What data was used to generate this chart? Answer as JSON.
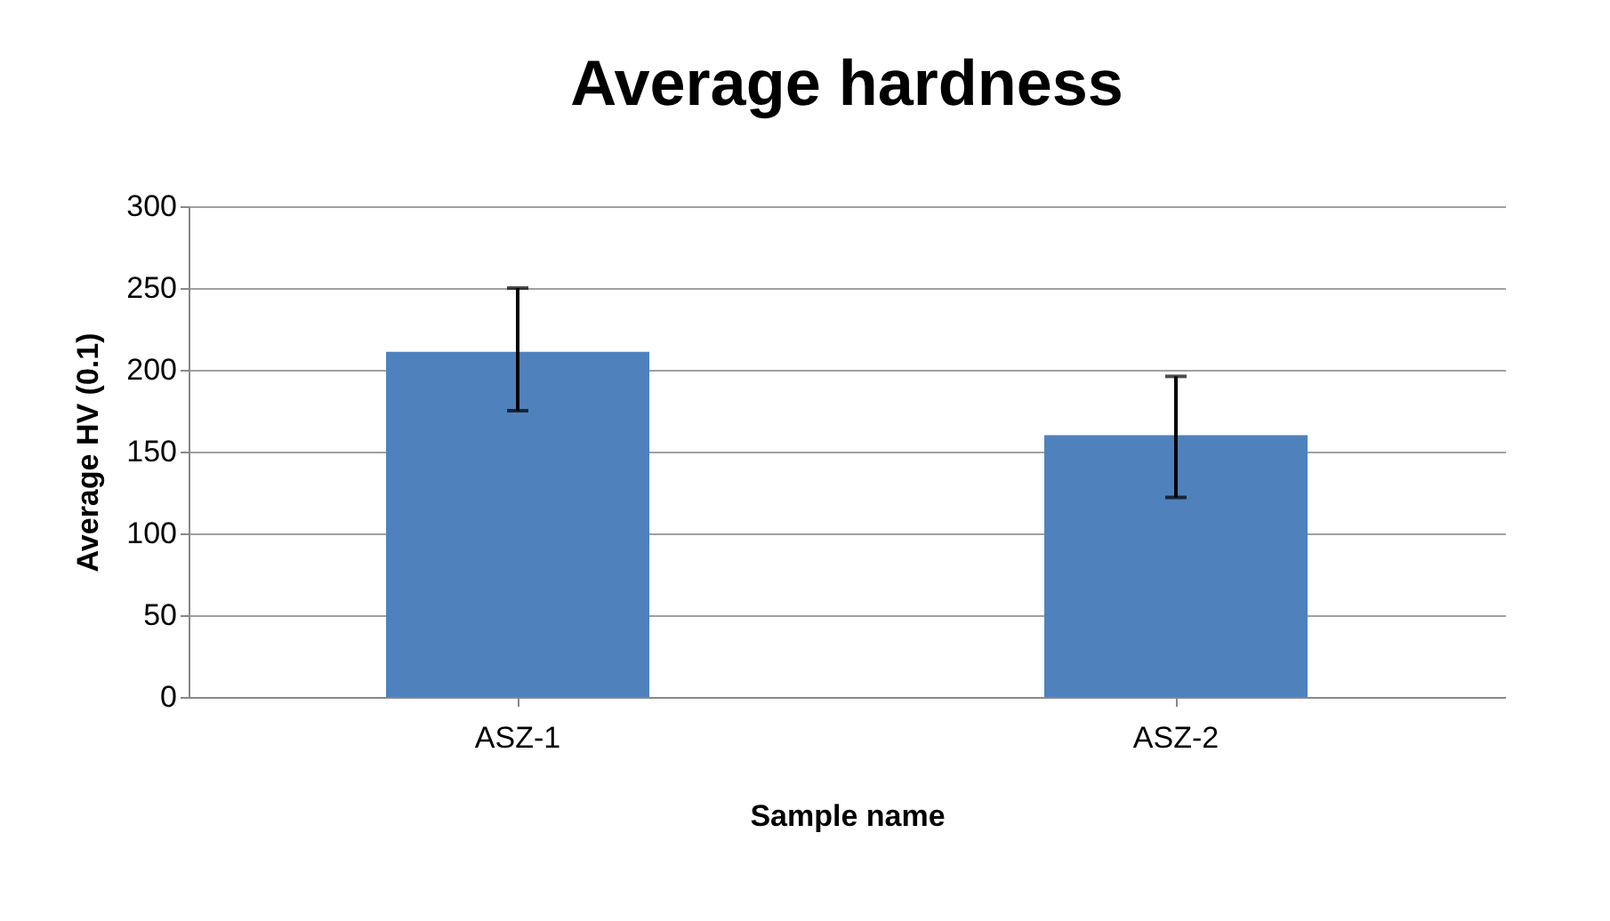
{
  "chart_data": {
    "type": "bar",
    "title": "Average hardness",
    "xlabel": "Sample name",
    "ylabel": "Average HV (0.1)",
    "categories": [
      "ASZ-1",
      "ASZ-2"
    ],
    "series": [
      {
        "color": "#4f81bd",
        "values": [
          211,
          160
        ],
        "errors": [
          [
            175,
            250
          ],
          [
            122,
            196
          ]
        ]
      }
    ],
    "ylim": [
      0,
      300
    ],
    "yticks": [
      0,
      50,
      100,
      150,
      200,
      250,
      300
    ],
    "grid": "y"
  }
}
